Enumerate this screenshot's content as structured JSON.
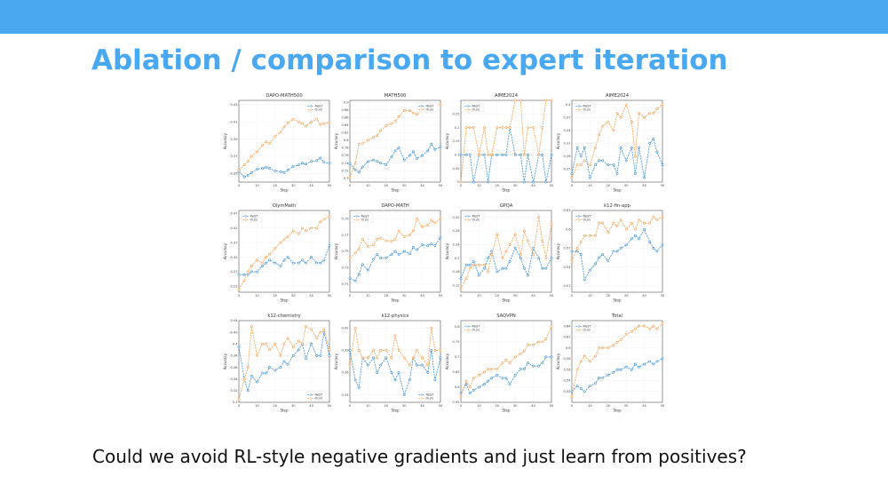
{
  "slide": {
    "title": "Ablation / comparison to expert iteration",
    "caption": "Could we avoid RL-style negative gradients and just learn from positives?"
  },
  "colors": {
    "topbar": "#4aa8f0",
    "title": "#4aa8f0",
    "reit": "#3a8fd6",
    "ours": "#f7a050"
  },
  "chart_data": [
    {
      "type": "line",
      "title": "DAPO-MATH500",
      "xlabel": "Step",
      "ylabel": "Accuracy",
      "xlim": [
        0,
        50
      ],
      "ylim": [
        0.34,
        0.435
      ],
      "yticks": [
        0.35,
        0.37,
        0.39,
        0.41,
        0.43
      ],
      "legend": "top-right",
      "x": [
        0,
        3,
        5,
        7,
        10,
        13,
        15,
        17,
        20,
        23,
        25,
        27,
        30,
        33,
        35,
        37,
        40,
        43,
        45,
        47,
        50
      ],
      "series": [
        {
          "name": "ReST",
          "values": [
            0.352,
            0.346,
            0.348,
            0.351,
            0.355,
            0.356,
            0.357,
            0.356,
            0.353,
            0.352,
            0.351,
            0.354,
            0.358,
            0.36,
            0.362,
            0.361,
            0.364,
            0.365,
            0.368,
            0.363,
            0.362
          ]
        },
        {
          "name": "Ours",
          "values": [
            0.354,
            0.36,
            0.364,
            0.37,
            0.375,
            0.383,
            0.387,
            0.385,
            0.393,
            0.398,
            0.404,
            0.409,
            0.413,
            0.41,
            0.408,
            0.405,
            0.41,
            0.413,
            0.407,
            0.408,
            0.409
          ]
        }
      ]
    },
    {
      "type": "line",
      "title": "MATH500",
      "xlabel": "Step",
      "ylabel": "Accuracy",
      "xlim": [
        0,
        50
      ],
      "ylim": [
        0.69,
        0.905
      ],
      "yticks": [
        0.7,
        0.72,
        0.74,
        0.76,
        0.78,
        0.8,
        0.82,
        0.84,
        0.86,
        0.88,
        0.9
      ],
      "legend": "top-right",
      "x": [
        0,
        3,
        5,
        7,
        10,
        13,
        15,
        17,
        20,
        23,
        25,
        27,
        30,
        33,
        35,
        37,
        40,
        43,
        45,
        47,
        50
      ],
      "series": [
        {
          "name": "ReST",
          "values": [
            0.738,
            0.722,
            0.716,
            0.73,
            0.744,
            0.748,
            0.745,
            0.74,
            0.736,
            0.756,
            0.772,
            0.78,
            0.748,
            0.76,
            0.77,
            0.752,
            0.76,
            0.772,
            0.79,
            0.776,
            0.782
          ]
        },
        {
          "name": "Ours",
          "values": [
            0.702,
            0.74,
            0.79,
            0.792,
            0.8,
            0.808,
            0.812,
            0.826,
            0.838,
            0.844,
            0.85,
            0.862,
            0.878,
            0.878,
            0.872,
            0.868,
            0.88,
            0.884,
            0.886,
            0.89,
            0.894
          ]
        }
      ]
    },
    {
      "type": "line",
      "title": "AIME2024",
      "xlabel": "Step",
      "ylabel": "Accuracy",
      "xlim": [
        0,
        50
      ],
      "ylim": [
        0,
        0.3
      ],
      "yticks": [
        0.0,
        0.05,
        0.1,
        0.15,
        0.2,
        0.25
      ],
      "legend": "top-left",
      "x": [
        0,
        3,
        5,
        7,
        10,
        13,
        15,
        17,
        20,
        23,
        25,
        27,
        30,
        33,
        35,
        37,
        40,
        43,
        45,
        47,
        50
      ],
      "series": [
        {
          "name": "ReST",
          "values": [
            0.1,
            0.1,
            0.1,
            0.0,
            0.1,
            0.1,
            0.0,
            0.1,
            0.1,
            0.1,
            0.1,
            0.2,
            0.1,
            0.1,
            0.0,
            0.1,
            0.0,
            0.1,
            0.1,
            0.0,
            0.1
          ]
        },
        {
          "name": "Ours",
          "values": [
            0.0,
            0.2,
            0.2,
            0.2,
            0.1,
            0.2,
            0.1,
            0.1,
            0.2,
            0.2,
            0.2,
            0.2,
            0.3,
            0.3,
            0.1,
            0.2,
            0.2,
            0.1,
            0.2,
            0.3,
            0.3
          ]
        }
      ]
    },
    {
      "type": "line",
      "title": "AIME2024",
      "xlabel": "Step",
      "ylabel": "Accuracy",
      "xlim": [
        0,
        50
      ],
      "ylim": [
        0.22,
        0.41
      ],
      "yticks": [
        0.25,
        0.28,
        0.31,
        0.34,
        0.37,
        0.4
      ],
      "legend": "top-left",
      "x": [
        0,
        3,
        5,
        7,
        10,
        13,
        15,
        17,
        20,
        23,
        25,
        27,
        30,
        33,
        35,
        37,
        40,
        43,
        45,
        47,
        50
      ],
      "series": [
        {
          "name": "ReST",
          "values": [
            0.24,
            0.3,
            0.28,
            0.3,
            0.23,
            0.26,
            0.27,
            0.27,
            0.26,
            0.26,
            0.24,
            0.3,
            0.27,
            0.3,
            0.24,
            0.3,
            0.23,
            0.31,
            0.32,
            0.29,
            0.26
          ]
        },
        {
          "name": "Ours",
          "values": [
            0.23,
            0.26,
            0.26,
            0.27,
            0.26,
            0.3,
            0.33,
            0.35,
            0.36,
            0.34,
            0.38,
            0.37,
            0.4,
            0.36,
            0.28,
            0.38,
            0.37,
            0.38,
            0.38,
            0.39,
            0.4
          ]
        }
      ]
    },
    {
      "type": "line",
      "title": "OlymMath",
      "xlabel": "Step",
      "ylabel": "Accuracy",
      "xlim": [
        0,
        50
      ],
      "ylim": [
        0.2,
        0.48
      ],
      "yticks": [
        0.22,
        0.27,
        0.32,
        0.37,
        0.42,
        0.47
      ],
      "legend": "top-left",
      "x": [
        0,
        3,
        5,
        7,
        10,
        13,
        15,
        17,
        20,
        23,
        25,
        27,
        30,
        33,
        35,
        37,
        40,
        43,
        45,
        47,
        50
      ],
      "series": [
        {
          "name": "ReST",
          "values": [
            0.26,
            0.26,
            0.26,
            0.27,
            0.27,
            0.29,
            0.3,
            0.31,
            0.3,
            0.29,
            0.31,
            0.32,
            0.3,
            0.3,
            0.31,
            0.3,
            0.32,
            0.3,
            0.3,
            0.31,
            0.36
          ]
        },
        {
          "name": "Ours",
          "values": [
            0.21,
            0.24,
            0.27,
            0.29,
            0.31,
            0.3,
            0.32,
            0.33,
            0.35,
            0.37,
            0.38,
            0.39,
            0.41,
            0.4,
            0.42,
            0.41,
            0.42,
            0.42,
            0.44,
            0.45,
            0.46
          ]
        }
      ]
    },
    {
      "type": "line",
      "title": "DAPO-MATH",
      "xlabel": "Step",
      "ylabel": "Accuracy",
      "xlim": [
        0,
        50
      ],
      "ylim": [
        0.7,
        0.8
      ],
      "yticks": [
        0.71,
        0.73,
        0.75,
        0.77,
        0.79
      ],
      "legend": "top-left",
      "x": [
        0,
        3,
        5,
        7,
        10,
        13,
        15,
        17,
        20,
        23,
        25,
        27,
        30,
        33,
        35,
        37,
        40,
        43,
        45,
        47,
        50
      ],
      "series": [
        {
          "name": "ReST",
          "values": [
            0.717,
            0.714,
            0.722,
            0.734,
            0.727,
            0.74,
            0.746,
            0.742,
            0.742,
            0.746,
            0.75,
            0.746,
            0.75,
            0.747,
            0.755,
            0.752,
            0.758,
            0.757,
            0.759,
            0.757,
            0.767
          ]
        },
        {
          "name": "Ours",
          "values": [
            0.742,
            0.748,
            0.753,
            0.765,
            0.756,
            0.758,
            0.765,
            0.766,
            0.763,
            0.762,
            0.765,
            0.775,
            0.768,
            0.77,
            0.775,
            0.79,
            0.78,
            0.782,
            0.788,
            0.785,
            0.79
          ]
        }
      ]
    },
    {
      "type": "line",
      "title": "GPQA",
      "xlabel": "Step",
      "ylabel": "Accuracy",
      "xlim": [
        0,
        50
      ],
      "ylim": [
        0.1,
        0.34
      ],
      "yticks": [
        0.12,
        0.16,
        0.2,
        0.24,
        0.28,
        0.32
      ],
      "legend": "top-left",
      "x": [
        0,
        3,
        5,
        7,
        10,
        13,
        15,
        17,
        20,
        23,
        25,
        27,
        30,
        33,
        35,
        37,
        40,
        43,
        45,
        47,
        50
      ],
      "series": [
        {
          "name": "ReST",
          "values": [
            0.14,
            0.18,
            0.18,
            0.19,
            0.15,
            0.17,
            0.2,
            0.22,
            0.16,
            0.17,
            0.17,
            0.19,
            0.23,
            0.2,
            0.17,
            0.15,
            0.23,
            0.2,
            0.17,
            0.17,
            0.2
          ]
        },
        {
          "name": "Ours",
          "values": [
            0.11,
            0.14,
            0.17,
            0.18,
            0.18,
            0.18,
            0.16,
            0.21,
            0.27,
            0.2,
            0.22,
            0.24,
            0.27,
            0.21,
            0.28,
            0.25,
            0.21,
            0.32,
            0.25,
            0.2,
            0.3
          ]
        }
      ]
    },
    {
      "type": "line",
      "title": "k12-fin-app",
      "xlabel": "Step",
      "ylabel": "Accuracy",
      "xlim": [
        0,
        50
      ],
      "ylim": [
        0.5,
        0.63
      ],
      "yticks": [
        0.51,
        0.54,
        0.57,
        0.6,
        0.63
      ],
      "legend": "top-left",
      "x": [
        0,
        3,
        5,
        7,
        10,
        13,
        15,
        17,
        20,
        23,
        25,
        27,
        30,
        33,
        35,
        37,
        40,
        43,
        45,
        47,
        50
      ],
      "series": [
        {
          "name": "ReST",
          "values": [
            0.565,
            0.565,
            0.56,
            0.52,
            0.535,
            0.545,
            0.555,
            0.56,
            0.55,
            0.565,
            0.565,
            0.57,
            0.575,
            0.585,
            0.59,
            0.585,
            0.6,
            0.58,
            0.57,
            0.565,
            0.575
          ]
        },
        {
          "name": "Ours",
          "values": [
            0.55,
            0.57,
            0.58,
            0.59,
            0.59,
            0.59,
            0.61,
            0.61,
            0.595,
            0.61,
            0.605,
            0.615,
            0.6,
            0.61,
            0.6,
            0.615,
            0.61,
            0.61,
            0.62,
            0.615,
            0.62
          ]
        }
      ]
    },
    {
      "type": "line",
      "title": "k12-chemistry",
      "xlabel": "Step",
      "ylabel": "Accuracy",
      "xlim": [
        0,
        50
      ],
      "ylim": [
        0.3,
        0.44
      ],
      "yticks": [
        0.3,
        0.32,
        0.34,
        0.36,
        0.38,
        0.4,
        0.42,
        0.44
      ],
      "legend": "bottom-right",
      "x": [
        0,
        3,
        5,
        7,
        10,
        13,
        15,
        17,
        20,
        23,
        25,
        27,
        30,
        33,
        35,
        37,
        40,
        43,
        45,
        47,
        50
      ],
      "series": [
        {
          "name": "ReST",
          "values": [
            0.395,
            0.34,
            0.32,
            0.345,
            0.335,
            0.35,
            0.35,
            0.36,
            0.355,
            0.36,
            0.37,
            0.365,
            0.38,
            0.39,
            0.4,
            0.375,
            0.4,
            0.38,
            0.38,
            0.42,
            0.38
          ]
        },
        {
          "name": "Ours",
          "values": [
            0.305,
            0.34,
            0.36,
            0.43,
            0.38,
            0.4,
            0.4,
            0.39,
            0.4,
            0.38,
            0.4,
            0.41,
            0.395,
            0.405,
            0.4,
            0.43,
            0.425,
            0.41,
            0.42,
            0.425,
            0.39
          ]
        }
      ]
    },
    {
      "type": "line",
      "title": "k12-physics",
      "xlabel": "Step",
      "ylabel": "Accuracy",
      "xlim": [
        0,
        50
      ],
      "ylim": [
        0.32,
        0.43
      ],
      "yticks": [
        0.33,
        0.36,
        0.39,
        0.42
      ],
      "legend": "bottom-right",
      "x": [
        0,
        3,
        5,
        7,
        10,
        13,
        15,
        17,
        20,
        23,
        25,
        27,
        30,
        33,
        35,
        37,
        40,
        43,
        45,
        47,
        50
      ],
      "series": [
        {
          "name": "ReST",
          "values": [
            0.39,
            0.35,
            0.34,
            0.38,
            0.37,
            0.38,
            0.36,
            0.37,
            0.38,
            0.36,
            0.35,
            0.36,
            0.33,
            0.35,
            0.38,
            0.37,
            0.37,
            0.36,
            0.39,
            0.35,
            0.38
          ]
        },
        {
          "name": "Ours",
          "values": [
            0.37,
            0.42,
            0.39,
            0.38,
            0.38,
            0.39,
            0.38,
            0.39,
            0.39,
            0.38,
            0.41,
            0.39,
            0.38,
            0.37,
            0.38,
            0.39,
            0.38,
            0.37,
            0.42,
            0.39,
            0.39
          ]
        }
      ]
    },
    {
      "type": "line",
      "title": "SAQVPN",
      "xlabel": "Step",
      "ylabel": "Accuracy",
      "xlim": [
        0,
        50
      ],
      "ylim": [
        0.55,
        0.82
      ],
      "yticks": [
        0.55,
        0.6,
        0.65,
        0.7,
        0.75,
        0.8
      ],
      "legend": "top-left",
      "x": [
        0,
        3,
        5,
        7,
        10,
        13,
        15,
        17,
        20,
        23,
        25,
        27,
        30,
        33,
        35,
        37,
        40,
        43,
        45,
        47,
        50
      ],
      "series": [
        {
          "name": "ReST",
          "values": [
            0.58,
            0.61,
            0.58,
            0.59,
            0.6,
            0.61,
            0.62,
            0.63,
            0.64,
            0.63,
            0.63,
            0.61,
            0.64,
            0.66,
            0.66,
            0.68,
            0.67,
            0.67,
            0.68,
            0.7,
            0.7
          ]
        },
        {
          "name": "Ours",
          "values": [
            0.57,
            0.62,
            0.6,
            0.63,
            0.64,
            0.65,
            0.66,
            0.66,
            0.66,
            0.68,
            0.69,
            0.68,
            0.7,
            0.71,
            0.72,
            0.74,
            0.74,
            0.75,
            0.75,
            0.76,
            0.8
          ]
        }
      ]
    },
    {
      "type": "line",
      "title": "Total",
      "xlabel": "Step",
      "ylabel": "Accuracy",
      "xlim": [
        0,
        50
      ],
      "ylim": [
        0.5,
        0.65
      ],
      "yticks": [
        0.52,
        0.54,
        0.56,
        0.58,
        0.6,
        0.62,
        0.64
      ],
      "legend": "top-left",
      "x": [
        0,
        3,
        5,
        7,
        10,
        13,
        15,
        17,
        20,
        23,
        25,
        27,
        30,
        33,
        35,
        37,
        40,
        43,
        45,
        47,
        50
      ],
      "series": [
        {
          "name": "ReST",
          "values": [
            0.52,
            0.53,
            0.525,
            0.52,
            0.53,
            0.535,
            0.545,
            0.545,
            0.55,
            0.555,
            0.56,
            0.56,
            0.565,
            0.56,
            0.57,
            0.565,
            0.57,
            0.575,
            0.57,
            0.575,
            0.58
          ]
        },
        {
          "name": "Ours",
          "values": [
            0.51,
            0.56,
            0.575,
            0.585,
            0.575,
            0.585,
            0.6,
            0.6,
            0.6,
            0.605,
            0.61,
            0.615,
            0.625,
            0.63,
            0.635,
            0.64,
            0.64,
            0.635,
            0.64,
            0.635,
            0.645
          ]
        }
      ]
    }
  ]
}
